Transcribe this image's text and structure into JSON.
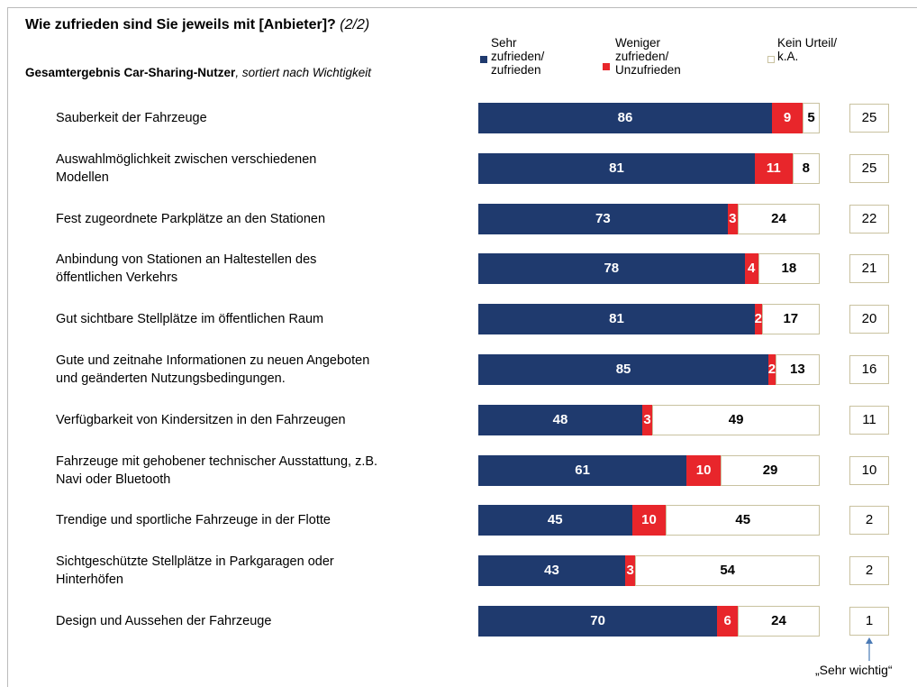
{
  "chart_data": {
    "type": "stacked-bar",
    "orientation": "horizontal",
    "title": "Wie zufrieden sind Sie jeweils mit [Anbieter]?",
    "title_suffix": "(2/2)",
    "subtitle": "Gesamtergebnis Car-Sharing-Nutzer",
    "subtitle_suffix": ", sortiert nach Wichtigkeit",
    "categories": [
      "Sauberkeit der Fahrzeuge",
      "Auswahlmöglichkeit zwischen verschiedenen\nModellen",
      "Fest zugeordnete Parkplätze an den Stationen",
      "Anbindung von Stationen an Haltestellen des\nöffentlichen Verkehrs",
      "Gut sichtbare Stellplätze im öffentlichen Raum",
      "Gute und zeitnahe Informationen zu neuen Angeboten\nund geänderten Nutzungsbedingungen.",
      "Verfügbarkeit von Kindersitzen in den Fahrzeugen",
      "Fahrzeuge mit gehobener technischer Ausstattung, z.B.\nNavi oder Bluetooth",
      "Trendige und sportliche Fahrzeuge in der Flotte",
      "Sichtgeschützte Stellplätze in Parkgaragen oder\nHinterhöfen",
      "Design und Aussehen der Fahrzeuge"
    ],
    "series": [
      {
        "name": "Sehr\nzufrieden/\nzufrieden",
        "color": "#1f3a6e",
        "label_color": "#ffffff",
        "values": [
          86,
          81,
          73,
          78,
          81,
          85,
          48,
          61,
          45,
          43,
          70
        ]
      },
      {
        "name": "Weniger\nzufrieden/\nUnzufrieden",
        "color": "#e8262b",
        "label_color": "#ffffff",
        "values": [
          9,
          11,
          3,
          4,
          2,
          2,
          3,
          10,
          10,
          3,
          6
        ]
      },
      {
        "name": "Kein Urteil/\nk.A.",
        "color": "#ffffff",
        "label_color": "#000000",
        "values": [
          5,
          8,
          24,
          18,
          17,
          13,
          49,
          29,
          45,
          54,
          24
        ]
      }
    ],
    "xlim": [
      0,
      100
    ],
    "importance": [
      25,
      25,
      22,
      21,
      20,
      16,
      11,
      10,
      2,
      2,
      1
    ],
    "annotation": "„Sehr wichtig“"
  }
}
